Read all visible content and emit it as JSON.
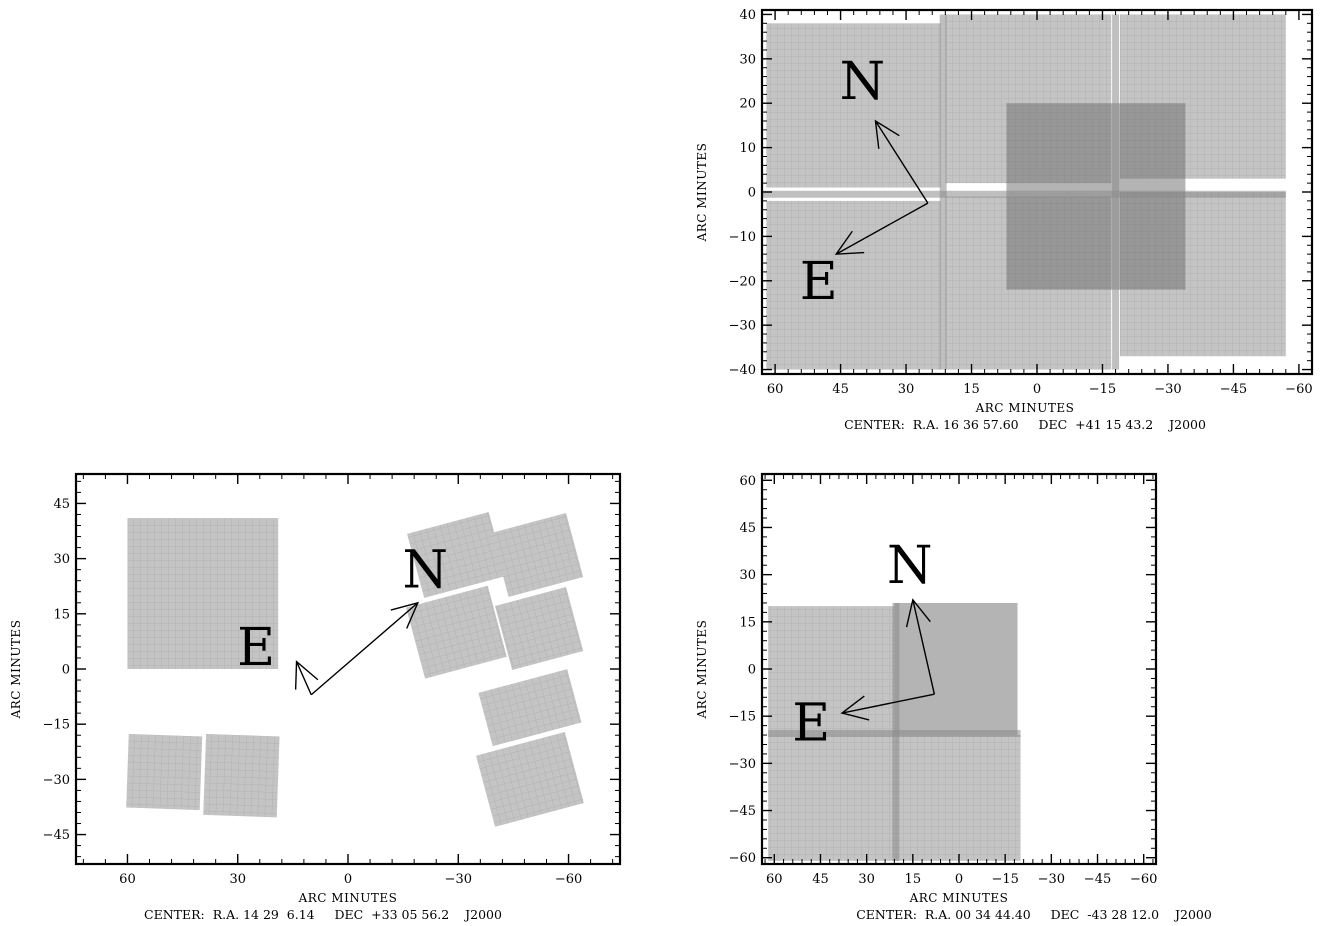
{
  "chart_data": [
    {
      "id": "panel-top-right",
      "type": "heatmap",
      "title": "",
      "xlabel": "ARC MINUTES",
      "ylabel": "ARC MINUTES",
      "xlim": [
        63,
        -63
      ],
      "ylim": [
        -41,
        41
      ],
      "xticks": [
        60,
        45,
        30,
        15,
        0,
        -15,
        -30,
        -45,
        -60
      ],
      "yticks": [
        40,
        30,
        20,
        10,
        0,
        -10,
        -20,
        -30,
        -40
      ],
      "caption": "CENTER:  R.A. 16 36 57.60     DEC  +41 15 43.2    J2000",
      "compass": {
        "north_label": "N",
        "east_label": "E",
        "origin": [
          25,
          -2.5
        ],
        "north_tip": [
          37,
          16
        ],
        "east_tip": [
          46,
          -14
        ],
        "north_label_pos": [
          40,
          25
        ],
        "east_label_pos": [
          50,
          -20
        ]
      },
      "tiles": [
        {
          "x0": 62,
          "x1": 22,
          "y0": 38,
          "y1": 1,
          "tone": "light"
        },
        {
          "x0": 62,
          "x1": 22,
          "y0": -2,
          "y1": -40,
          "tone": "light"
        },
        {
          "x0": 21,
          "x1": -17,
          "y0": 40,
          "y1": 2,
          "tone": "light"
        },
        {
          "x0": 21,
          "x1": -17,
          "y0": -1,
          "y1": -40,
          "tone": "light"
        },
        {
          "x0": -19,
          "x1": -57,
          "y0": 40,
          "y1": 3,
          "tone": "light"
        },
        {
          "x0": -19,
          "x1": -57,
          "y0": 0,
          "y1": -37,
          "tone": "light"
        },
        {
          "x0": 7,
          "x1": -34,
          "y0": 20,
          "y1": -22,
          "tone": "dark"
        }
      ],
      "seams": [
        {
          "x1": 63,
          "y1": -0.5,
          "x2": -57,
          "y2": -0.5
        },
        {
          "x1": 21.5,
          "y1": 40,
          "x2": 21.5,
          "y2": -40
        },
        {
          "x1": -18,
          "y1": 40,
          "x2": -18,
          "y2": -40
        }
      ]
    },
    {
      "id": "panel-bottom-left",
      "type": "heatmap",
      "title": "",
      "xlabel": "ARC MINUTES",
      "ylabel": "ARC MINUTES",
      "xlim": [
        74,
        -74
      ],
      "ylim": [
        -53,
        53
      ],
      "xticks": [
        60,
        30,
        0,
        -30,
        -60
      ],
      "yticks": [
        45,
        30,
        15,
        0,
        -15,
        -30,
        -45
      ],
      "caption": "CENTER:  R.A. 14 29  6.14     DEC  +33 05 56.2    J2000",
      "compass": {
        "north_label": "N",
        "east_label": "E",
        "origin": [
          10,
          -7
        ],
        "north_tip": [
          -19,
          18
        ],
        "east_tip": [
          14,
          2
        ],
        "north_label_pos": [
          -21,
          27
        ],
        "east_label_pos": [
          25,
          6
        ]
      },
      "tiles": [
        {
          "x0": 60,
          "x1": 19,
          "y0": 41,
          "y1": 0,
          "tone": "light",
          "rot": 0
        },
        {
          "x0": 60,
          "x1": 40,
          "y0": -18,
          "y1": -38,
          "tone": "light",
          "rot": 2
        },
        {
          "x0": 39,
          "x1": 19,
          "y0": -18,
          "y1": -40,
          "tone": "light",
          "rot": 2
        },
        {
          "x0": -18,
          "x1": -41,
          "y0": 40,
          "y1": 22,
          "tone": "light",
          "rot": -15
        },
        {
          "x0": -41,
          "x1": -62,
          "y0": 40,
          "y1": 22,
          "tone": "light",
          "rot": -15
        },
        {
          "x0": -18,
          "x1": -41,
          "y0": 20,
          "y1": 0,
          "tone": "light",
          "rot": -15
        },
        {
          "x0": -42,
          "x1": -62,
          "y0": 20,
          "y1": 2,
          "tone": "light",
          "rot": -15
        },
        {
          "x0": -37,
          "x1": -62,
          "y0": -3,
          "y1": -18,
          "tone": "light",
          "rot": -15
        },
        {
          "x0": -37,
          "x1": -62,
          "y0": -20,
          "y1": -40,
          "tone": "light",
          "rot": -15
        }
      ]
    },
    {
      "id": "panel-bottom-right",
      "type": "heatmap",
      "title": "",
      "xlabel": "ARC MINUTES",
      "ylabel": "ARC MINUTES",
      "xlim": [
        64,
        -64
      ],
      "ylim": [
        -62,
        62
      ],
      "xticks": [
        60,
        45,
        30,
        15,
        0,
        -15,
        -30,
        -45,
        -60
      ],
      "yticks": [
        60,
        45,
        30,
        15,
        0,
        -15,
        -30,
        -45,
        -60
      ],
      "caption": "CENTER:  R.A. 00 34 44.40     DEC  -43 28 12.0    J2000",
      "compass": {
        "north_label": "N",
        "east_label": "E",
        "origin": [
          8,
          -8
        ],
        "north_tip": [
          15,
          22
        ],
        "east_tip": [
          38,
          -14
        ],
        "north_label_pos": [
          16,
          33
        ],
        "east_label_pos": [
          48,
          -17
        ]
      },
      "tiles": [
        {
          "x0": 62,
          "x1": 21,
          "y0": 20,
          "y1": -21,
          "tone": "light"
        },
        {
          "x0": 62,
          "x1": 21,
          "y0": -21,
          "y1": -61,
          "tone": "light"
        },
        {
          "x0": 21,
          "x1": -20,
          "y0": -21,
          "y1": -61,
          "tone": "light"
        },
        {
          "x0": 21,
          "x1": -19,
          "y0": 21,
          "y1": -21,
          "tone": "dark"
        }
      ],
      "seams": [
        {
          "x1": 62,
          "y1": -20.5,
          "x2": -20,
          "y2": -20.5
        },
        {
          "x1": 20.5,
          "y1": 21,
          "x2": 20.5,
          "y2": -61
        }
      ]
    }
  ],
  "layout_note_free": true
}
